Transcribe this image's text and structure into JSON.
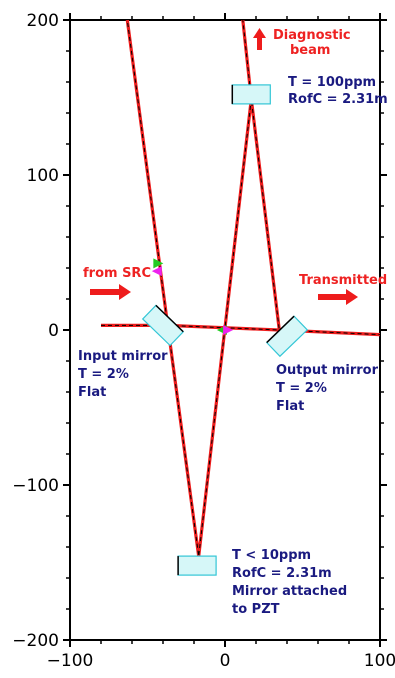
{
  "chart_data": {
    "type": "diagram",
    "xlim": [
      -100,
      100
    ],
    "ylim": [
      -200,
      200
    ],
    "x_ticks": [
      -100,
      0,
      100
    ],
    "y_ticks": [
      -200,
      -100,
      0,
      100,
      200
    ],
    "x_tick_labels": [
      "−100",
      "0",
      "100"
    ],
    "y_tick_labels": [
      "−200",
      "−100",
      "0",
      "100",
      "200"
    ],
    "beam_color": "#ee1c1c",
    "beam_core_color": "#000000",
    "mirror_fill": "#d6f7f8",
    "mirror_edge_cyan": "#33c6d6",
    "mirror_edge_dark": "#000000",
    "arrow_color": "#ee1c1c",
    "label_red_color": "#ee2222",
    "label_blue_color": "#1a1a80",
    "marker_green": "#22cc22",
    "marker_magenta": "#ee22ee",
    "beam_path": [
      [
        -80,
        3
      ],
      [
        -37,
        3
      ],
      [
        -17,
        -146
      ],
      [
        17,
        149
      ],
      [
        35,
        0
      ],
      [
        100,
        -3
      ]
    ],
    "inner_beam": [
      [
        -37,
        3
      ],
      [
        35,
        0
      ]
    ],
    "incoming_beam": [
      [
        -37,
        3
      ],
      [
        -63,
        200
      ]
    ],
    "diagnostic_beam": [
      [
        17,
        149
      ],
      [
        11.5,
        200
      ]
    ],
    "mirrors": [
      {
        "id": "input",
        "cx": -40,
        "cy": 3,
        "angle_deg": 44
      },
      {
        "id": "output",
        "cx": 40,
        "cy": -4,
        "angle_deg": -44
      },
      {
        "id": "top",
        "cx": 17,
        "cy": 152,
        "angle_deg": 0
      },
      {
        "id": "bottom",
        "cx": -18,
        "cy": -152,
        "angle_deg": 0
      }
    ]
  },
  "annotations": {
    "diagnostic_line1": "Diagnostic",
    "diagnostic_line2": "beam",
    "top_mirror_line1": "T = 100ppm",
    "top_mirror_line2": "RofC = 2.31m",
    "from_src": "from SRC",
    "transmitted": "Transmitted",
    "input_line1": "Input mirror",
    "input_line2": "T = 2%",
    "input_line3": "Flat",
    "output_line1": "Output mirror",
    "output_line2": "T = 2%",
    "output_line3": "Flat",
    "bottom_line1": "T < 10ppm",
    "bottom_line2": "RofC = 2.31m",
    "bottom_line3": "Mirror attached",
    "bottom_line4": "to PZT"
  }
}
